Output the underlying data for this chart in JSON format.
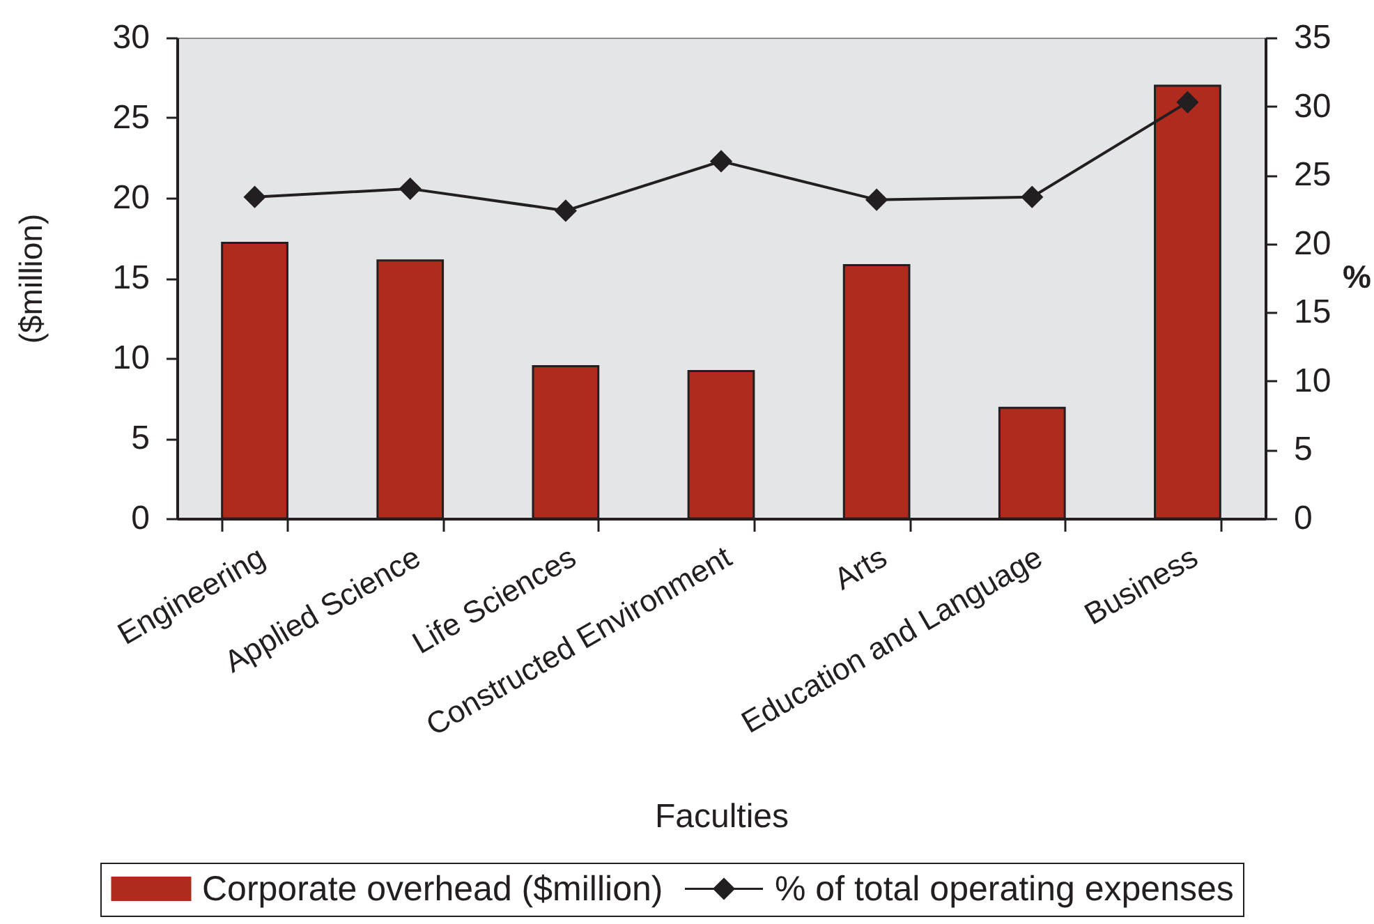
{
  "chart_data": {
    "type": "bar",
    "xlabel": "Faculties",
    "ylabel": "($million)",
    "y2label": "%",
    "categories": [
      "Engineering",
      "Applied Science",
      "Life Sciences",
      "Constructed Environment",
      "Arts",
      "Education and Language",
      "Business"
    ],
    "series": [
      {
        "name": "Corporate overhead ($million)",
        "color": "#b02a1e",
        "values": [
          17.2,
          16.1,
          9.5,
          9.2,
          15.8,
          6.9,
          27.0
        ]
      },
      {
        "name": "% of total operating expenses",
        "type": "line",
        "axis": "y2",
        "color": "#231f20",
        "values": [
          23.4,
          24.0,
          22.4,
          26.0,
          23.2,
          23.4,
          30.3
        ]
      }
    ],
    "ylim": [
      0,
      30
    ],
    "yticks": [
      0,
      5,
      10,
      15,
      20,
      25,
      30
    ],
    "y2lim": [
      0,
      35
    ],
    "y2ticks": [
      0,
      5,
      10,
      15,
      20,
      25,
      30,
      35
    ],
    "grid": false,
    "legend": "bottom",
    "marker": "diamond",
    "line_style": "solid"
  }
}
